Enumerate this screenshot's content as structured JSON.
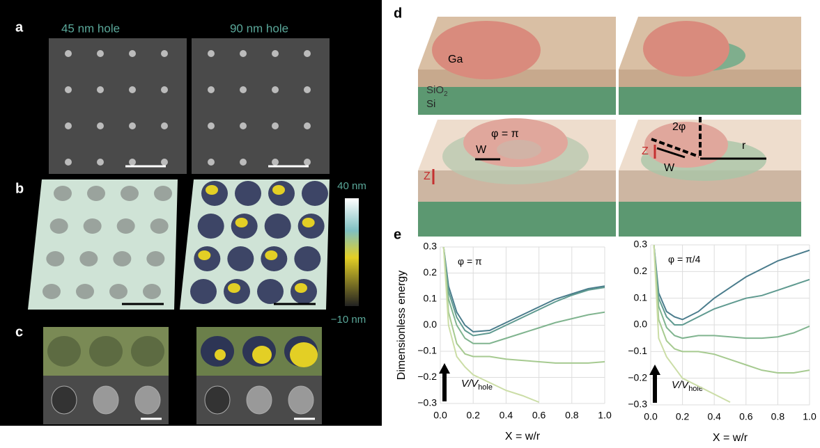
{
  "panels": {
    "a": "a",
    "b": "b",
    "c": "c",
    "d": "d",
    "e": "e"
  },
  "column_titles": [
    "45 nm hole",
    "90 nm hole"
  ],
  "colorbar": {
    "top": "40 nm",
    "bottom": "−10 nm"
  },
  "diagram": {
    "ga": "Ga",
    "sio2": {
      "main": "SiO",
      "sub": "2"
    },
    "si": "Si",
    "phi": "φ = π",
    "w_left": "W",
    "z_left": "Z",
    "two_phi": "2φ",
    "r": "r",
    "w_right": "W",
    "z_right": "Z"
  },
  "chart_data": [
    {
      "type": "line",
      "annotation": "φ = π",
      "arrow_label": {
        "main": "V/V",
        "sub": "hole"
      },
      "ylabel": "Dimensionless energy",
      "xlabel": "X = w/r",
      "x": [
        0.02,
        0.05,
        0.1,
        0.15,
        0.2,
        0.3,
        0.4,
        0.5,
        0.6,
        0.7,
        0.8,
        0.9,
        1.0
      ],
      "xlim": [
        0,
        1
      ],
      "ylim": [
        -0.3,
        0.3
      ],
      "xticks": [
        {
          "value": 0,
          "label": "0.0"
        },
        0.2,
        0.4,
        0.6,
        0.8,
        {
          "value": 1,
          "label": "1.0"
        }
      ],
      "yticks": [
        {
          "value": -0.3,
          "label": "−0.3"
        },
        {
          "value": -0.2,
          "label": "−0.2"
        },
        {
          "value": -0.1,
          "label": "−0.1"
        },
        {
          "value": 0,
          "label": "0.0"
        },
        0.1,
        0.2,
        0.3
      ],
      "grid": true,
      "series": [
        {
          "color": "#4a7c8c",
          "values": [
            0.3,
            0.15,
            0.05,
            0.0,
            -0.025,
            -0.02,
            0.01,
            0.04,
            0.07,
            0.1,
            0.12,
            0.14,
            0.15
          ]
        },
        {
          "color": "#5f9a90",
          "values": [
            0.3,
            0.13,
            0.03,
            -0.02,
            -0.04,
            -0.03,
            0.0,
            0.03,
            0.06,
            0.09,
            0.115,
            0.135,
            0.145
          ]
        },
        {
          "color": "#80b48f",
          "values": [
            0.3,
            0.1,
            0.0,
            -0.05,
            -0.07,
            -0.07,
            -0.05,
            -0.03,
            -0.01,
            0.01,
            0.025,
            0.04,
            0.05
          ]
        },
        {
          "color": "#a6ca90",
          "values": [
            0.3,
            0.05,
            -0.07,
            -0.11,
            -0.12,
            -0.12,
            -0.13,
            -0.135,
            -0.14,
            -0.145,
            -0.145,
            -0.145,
            -0.14
          ]
        },
        {
          "color": "#cbdda6",
          "values": [
            0.3,
            0.0,
            -0.12,
            -0.16,
            -0.19,
            -0.22,
            -0.25,
            -0.27,
            -0.295,
            null,
            null,
            null,
            null
          ]
        }
      ]
    },
    {
      "type": "line",
      "annotation": "φ = π/4",
      "arrow_label": {
        "main": "V/V",
        "sub": "hole"
      },
      "xlabel": "X = w/r",
      "x": [
        0.02,
        0.05,
        0.1,
        0.15,
        0.2,
        0.3,
        0.4,
        0.5,
        0.6,
        0.7,
        0.8,
        0.9,
        1.0
      ],
      "xlim": [
        0,
        1
      ],
      "ylim": [
        -0.3,
        0.3
      ],
      "xticks": [
        {
          "value": 0,
          "label": "0.0"
        },
        0.2,
        0.4,
        0.6,
        0.8,
        {
          "value": 1,
          "label": "1.0"
        }
      ],
      "yticks": [
        {
          "value": -0.3,
          "label": "−0.3"
        },
        {
          "value": -0.2,
          "label": "−0.2"
        },
        {
          "value": -0.1,
          "label": "−0.1"
        },
        {
          "value": 0,
          "label": "0.0"
        },
        0.1,
        0.2,
        0.3
      ],
      "grid": true,
      "series": [
        {
          "color": "#4a7c8c",
          "values": [
            0.3,
            0.12,
            0.05,
            0.03,
            0.02,
            0.05,
            0.1,
            0.14,
            0.18,
            0.21,
            0.24,
            0.26,
            0.28
          ]
        },
        {
          "color": "#5f9a90",
          "values": [
            0.3,
            0.1,
            0.03,
            0.0,
            0.0,
            0.03,
            0.06,
            0.08,
            0.1,
            0.11,
            0.13,
            0.15,
            0.17
          ]
        },
        {
          "color": "#80b48f",
          "values": [
            0.3,
            0.07,
            -0.01,
            -0.04,
            -0.05,
            -0.04,
            -0.04,
            -0.045,
            -0.05,
            -0.05,
            -0.045,
            -0.03,
            -0.005
          ]
        },
        {
          "color": "#a6ca90",
          "values": [
            0.3,
            0.02,
            -0.06,
            -0.09,
            -0.1,
            -0.1,
            -0.11,
            -0.13,
            -0.15,
            -0.17,
            -0.18,
            -0.18,
            -0.17
          ]
        },
        {
          "color": "#cbdda6",
          "values": [
            0.3,
            -0.05,
            -0.12,
            -0.16,
            -0.2,
            -0.23,
            -0.26,
            -0.29,
            null,
            null,
            null,
            null,
            null
          ]
        }
      ]
    }
  ]
}
